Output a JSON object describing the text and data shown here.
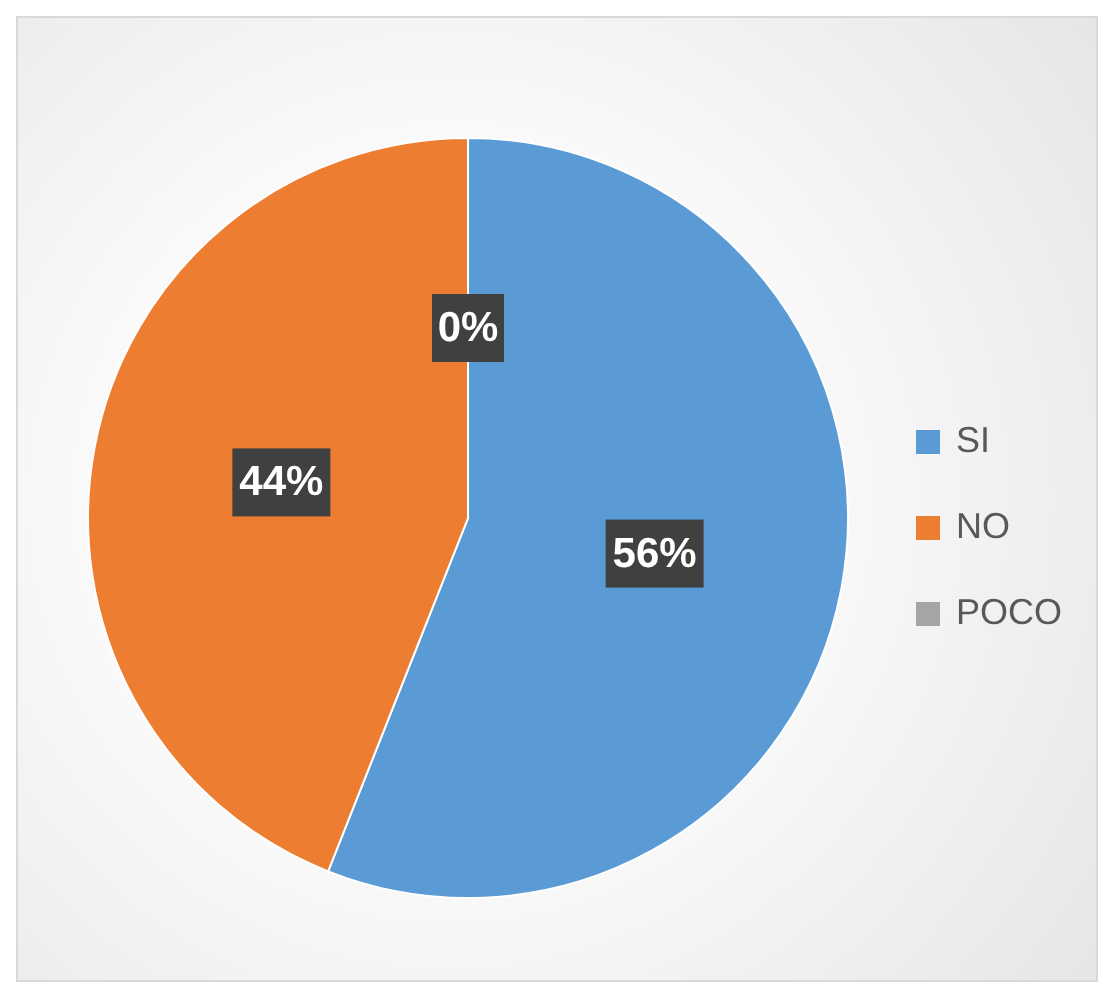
{
  "chart_data": {
    "type": "pie",
    "categories": [
      "SI",
      "NO",
      "POCO"
    ],
    "values": [
      56,
      44,
      0
    ],
    "value_labels": [
      "56%",
      "44%",
      "0%"
    ],
    "colors": [
      "#5b9bd5",
      "#ed7d31",
      "#a5a5a5"
    ],
    "legend": "right"
  }
}
